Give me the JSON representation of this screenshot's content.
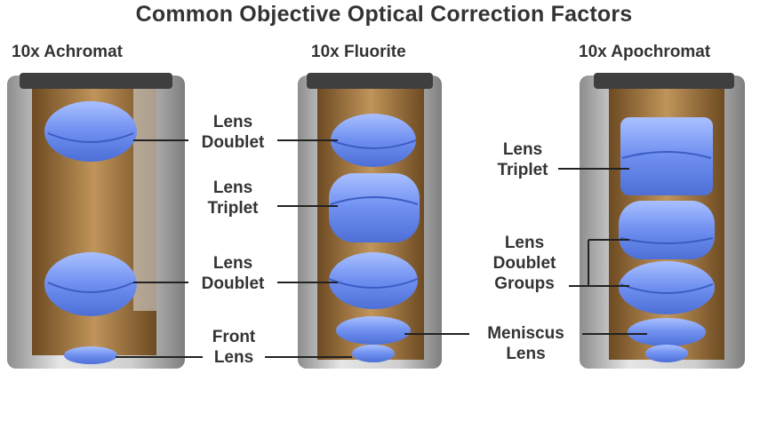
{
  "title": "Common Objective Optical Correction Factors",
  "objectives": [
    {
      "name": "10x Achromat"
    },
    {
      "name": "10x Fluorite"
    },
    {
      "name": "10x Apochromat"
    }
  ],
  "labels": {
    "lens_doublet_top": [
      "Lens",
      "Doublet"
    ],
    "lens_triplet_fluorite": [
      "Lens",
      "Triplet"
    ],
    "lens_doublet_bottom": [
      "Lens",
      "Doublet"
    ],
    "front_lens": [
      "Front",
      "Lens"
    ],
    "lens_triplet_apo": [
      "Lens",
      "Triplet"
    ],
    "lens_doublet_groups": [
      "Lens",
      "Doublet",
      "Groups"
    ],
    "meniscus_lens": [
      "Meniscus",
      "Lens"
    ]
  },
  "colors": {
    "lens": "#6f8ff0",
    "lens_highlight": "#a9c0ff",
    "barrel_interior": "#b5894f",
    "barrel_metal": "#c9c9c9",
    "label_text": "#333333",
    "leader_line": "#222222"
  }
}
